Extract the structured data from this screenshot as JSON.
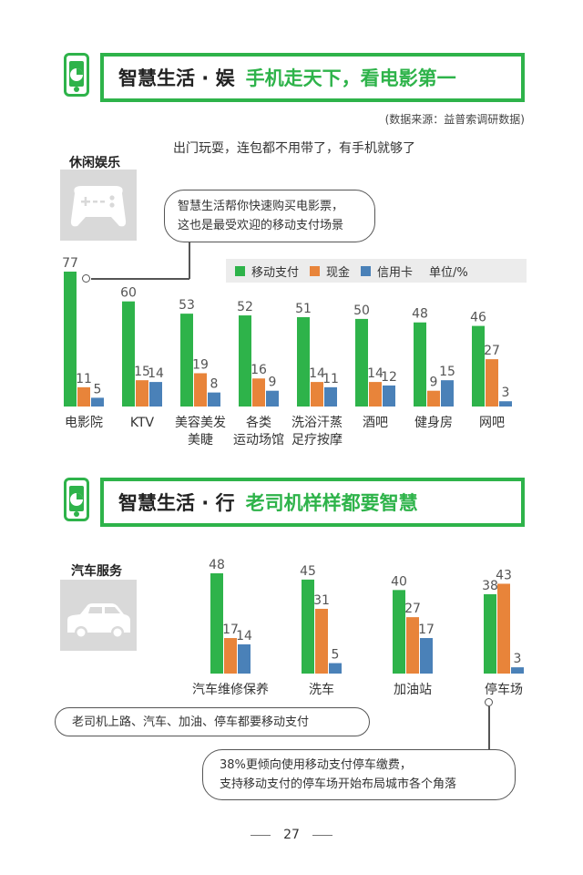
{
  "section1": {
    "title_main": "智慧生活 · 娱",
    "title_accent": "手机走天下，看电影第一",
    "source": "(数据来源：益普索调研数据)",
    "subtitle": "出门玩耍，连包都不用带了，有手机就够了",
    "category": "休闲娱乐",
    "category_icon": "gamepad-icon",
    "callout": [
      "智慧生活帮你快速购买电影票，",
      "这也是最受欢迎的移动支付场景"
    ],
    "legend": {
      "items": [
        "移动支付",
        "现金",
        "信用卡"
      ],
      "unit": "单位/%"
    }
  },
  "section2": {
    "title_main": "智慧生活 · 行",
    "title_accent": "老司机样样都要智慧",
    "category": "汽车服务",
    "category_icon": "car-icon",
    "callout_left": "老司机上路、汽车、加油、停车都要移动支付",
    "callout_right": [
      "38%更倾向使用移动支付停车缴费，",
      "支持移动支付的停车场开始布局城市各个角落"
    ]
  },
  "colors": {
    "mobile": "#2eb34a",
    "cash": "#e8843a",
    "credit": "#4a81b8",
    "accent": "#2eb34a"
  },
  "page_number": "27",
  "chart_data": [
    {
      "type": "bar",
      "categories": [
        [
          "电影院"
        ],
        [
          "KTV"
        ],
        [
          "美容美发",
          "美睫"
        ],
        [
          "各类",
          "运动场馆"
        ],
        [
          "洗浴汗蒸",
          "足疗按摩"
        ],
        [
          "酒吧"
        ],
        [
          "健身房"
        ],
        [
          "网吧"
        ]
      ],
      "series": [
        {
          "name": "移动支付",
          "values": [
            77,
            60,
            53,
            52,
            51,
            50,
            48,
            46
          ]
        },
        {
          "name": "现金",
          "values": [
            11,
            15,
            19,
            16,
            14,
            14,
            9,
            27
          ]
        },
        {
          "name": "信用卡",
          "values": [
            5,
            14,
            8,
            9,
            11,
            12,
            15,
            3
          ]
        }
      ],
      "ylim": [
        0,
        77
      ]
    },
    {
      "type": "bar",
      "categories": [
        [
          "汽车维修保养"
        ],
        [
          "洗车"
        ],
        [
          "加油站"
        ],
        [
          "停车场"
        ]
      ],
      "series": [
        {
          "name": "移动支付",
          "values": [
            48,
            45,
            40,
            38
          ]
        },
        {
          "name": "现金",
          "values": [
            17,
            31,
            27,
            43
          ]
        },
        {
          "name": "信用卡",
          "values": [
            14,
            5,
            17,
            3
          ]
        }
      ],
      "ylim": [
        0,
        48
      ]
    }
  ]
}
